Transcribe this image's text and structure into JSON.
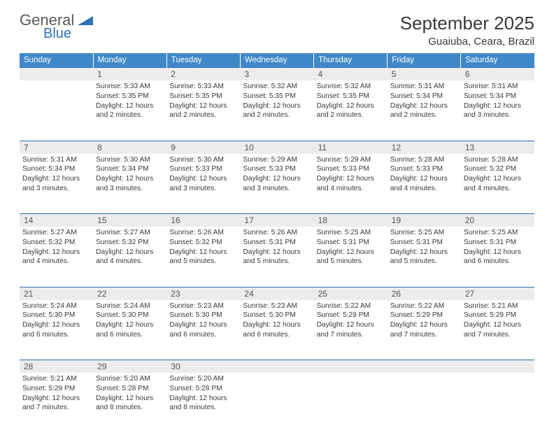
{
  "logo": {
    "general": "General",
    "blue": "Blue"
  },
  "title": "September 2025",
  "location": "Guaiuba, Ceara, Brazil",
  "colors": {
    "header_bg": "#3f89c9",
    "header_text": "#ffffff",
    "daynum_bg": "#ececec",
    "row_border": "#2b6fb3",
    "logo_blue": "#2f72b8",
    "logo_grey": "#5a5a5a"
  },
  "day_headers": [
    "Sunday",
    "Monday",
    "Tuesday",
    "Wednesday",
    "Thursday",
    "Friday",
    "Saturday"
  ],
  "weeks": [
    {
      "nums": [
        "",
        "1",
        "2",
        "3",
        "4",
        "5",
        "6"
      ],
      "cells": [
        null,
        {
          "sunrise": "Sunrise: 5:33 AM",
          "sunset": "Sunset: 5:35 PM",
          "daylight": "Daylight: 12 hours and 2 minutes."
        },
        {
          "sunrise": "Sunrise: 5:33 AM",
          "sunset": "Sunset: 5:35 PM",
          "daylight": "Daylight: 12 hours and 2 minutes."
        },
        {
          "sunrise": "Sunrise: 5:32 AM",
          "sunset": "Sunset: 5:35 PM",
          "daylight": "Daylight: 12 hours and 2 minutes."
        },
        {
          "sunrise": "Sunrise: 5:32 AM",
          "sunset": "Sunset: 5:35 PM",
          "daylight": "Daylight: 12 hours and 2 minutes."
        },
        {
          "sunrise": "Sunrise: 5:31 AM",
          "sunset": "Sunset: 5:34 PM",
          "daylight": "Daylight: 12 hours and 2 minutes."
        },
        {
          "sunrise": "Sunrise: 5:31 AM",
          "sunset": "Sunset: 5:34 PM",
          "daylight": "Daylight: 12 hours and 3 minutes."
        }
      ]
    },
    {
      "nums": [
        "7",
        "8",
        "9",
        "10",
        "11",
        "12",
        "13"
      ],
      "cells": [
        {
          "sunrise": "Sunrise: 5:31 AM",
          "sunset": "Sunset: 5:34 PM",
          "daylight": "Daylight: 12 hours and 3 minutes."
        },
        {
          "sunrise": "Sunrise: 5:30 AM",
          "sunset": "Sunset: 5:34 PM",
          "daylight": "Daylight: 12 hours and 3 minutes."
        },
        {
          "sunrise": "Sunrise: 5:30 AM",
          "sunset": "Sunset: 5:33 PM",
          "daylight": "Daylight: 12 hours and 3 minutes."
        },
        {
          "sunrise": "Sunrise: 5:29 AM",
          "sunset": "Sunset: 5:33 PM",
          "daylight": "Daylight: 12 hours and 3 minutes."
        },
        {
          "sunrise": "Sunrise: 5:29 AM",
          "sunset": "Sunset: 5:33 PM",
          "daylight": "Daylight: 12 hours and 4 minutes."
        },
        {
          "sunrise": "Sunrise: 5:28 AM",
          "sunset": "Sunset: 5:33 PM",
          "daylight": "Daylight: 12 hours and 4 minutes."
        },
        {
          "sunrise": "Sunrise: 5:28 AM",
          "sunset": "Sunset: 5:32 PM",
          "daylight": "Daylight: 12 hours and 4 minutes."
        }
      ]
    },
    {
      "nums": [
        "14",
        "15",
        "16",
        "17",
        "18",
        "19",
        "20"
      ],
      "cells": [
        {
          "sunrise": "Sunrise: 5:27 AM",
          "sunset": "Sunset: 5:32 PM",
          "daylight": "Daylight: 12 hours and 4 minutes."
        },
        {
          "sunrise": "Sunrise: 5:27 AM",
          "sunset": "Sunset: 5:32 PM",
          "daylight": "Daylight: 12 hours and 4 minutes."
        },
        {
          "sunrise": "Sunrise: 5:26 AM",
          "sunset": "Sunset: 5:32 PM",
          "daylight": "Daylight: 12 hours and 5 minutes."
        },
        {
          "sunrise": "Sunrise: 5:26 AM",
          "sunset": "Sunset: 5:31 PM",
          "daylight": "Daylight: 12 hours and 5 minutes."
        },
        {
          "sunrise": "Sunrise: 5:25 AM",
          "sunset": "Sunset: 5:31 PM",
          "daylight": "Daylight: 12 hours and 5 minutes."
        },
        {
          "sunrise": "Sunrise: 5:25 AM",
          "sunset": "Sunset: 5:31 PM",
          "daylight": "Daylight: 12 hours and 5 minutes."
        },
        {
          "sunrise": "Sunrise: 5:25 AM",
          "sunset": "Sunset: 5:31 PM",
          "daylight": "Daylight: 12 hours and 6 minutes."
        }
      ]
    },
    {
      "nums": [
        "21",
        "22",
        "23",
        "24",
        "25",
        "26",
        "27"
      ],
      "cells": [
        {
          "sunrise": "Sunrise: 5:24 AM",
          "sunset": "Sunset: 5:30 PM",
          "daylight": "Daylight: 12 hours and 6 minutes."
        },
        {
          "sunrise": "Sunrise: 5:24 AM",
          "sunset": "Sunset: 5:30 PM",
          "daylight": "Daylight: 12 hours and 6 minutes."
        },
        {
          "sunrise": "Sunrise: 5:23 AM",
          "sunset": "Sunset: 5:30 PM",
          "daylight": "Daylight: 12 hours and 6 minutes."
        },
        {
          "sunrise": "Sunrise: 5:23 AM",
          "sunset": "Sunset: 5:30 PM",
          "daylight": "Daylight: 12 hours and 6 minutes."
        },
        {
          "sunrise": "Sunrise: 5:22 AM",
          "sunset": "Sunset: 5:29 PM",
          "daylight": "Daylight: 12 hours and 7 minutes."
        },
        {
          "sunrise": "Sunrise: 5:22 AM",
          "sunset": "Sunset: 5:29 PM",
          "daylight": "Daylight: 12 hours and 7 minutes."
        },
        {
          "sunrise": "Sunrise: 5:21 AM",
          "sunset": "Sunset: 5:29 PM",
          "daylight": "Daylight: 12 hours and 7 minutes."
        }
      ]
    },
    {
      "nums": [
        "28",
        "29",
        "30",
        "",
        "",
        "",
        ""
      ],
      "cells": [
        {
          "sunrise": "Sunrise: 5:21 AM",
          "sunset": "Sunset: 5:29 PM",
          "daylight": "Daylight: 12 hours and 7 minutes."
        },
        {
          "sunrise": "Sunrise: 5:20 AM",
          "sunset": "Sunset: 5:28 PM",
          "daylight": "Daylight: 12 hours and 8 minutes."
        },
        {
          "sunrise": "Sunrise: 5:20 AM",
          "sunset": "Sunset: 5:28 PM",
          "daylight": "Daylight: 12 hours and 8 minutes."
        },
        null,
        null,
        null,
        null
      ]
    }
  ]
}
